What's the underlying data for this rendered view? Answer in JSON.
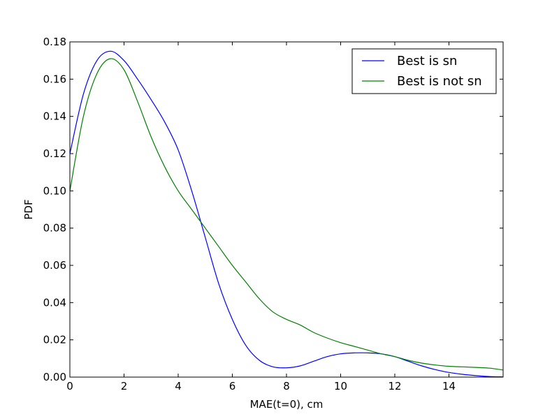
{
  "chart_data": {
    "type": "line",
    "xlabel": "MAE(t=0), cm",
    "ylabel": "PDF",
    "xlim": [
      0,
      16
    ],
    "ylim": [
      0,
      0.18
    ],
    "x_ticks": [
      0,
      2,
      4,
      6,
      8,
      10,
      12,
      14
    ],
    "x_tick_labels": [
      "0",
      "2",
      "4",
      "6",
      "8",
      "10",
      "12",
      "14"
    ],
    "y_ticks": [
      0.0,
      0.02,
      0.04,
      0.06,
      0.08,
      0.1,
      0.12,
      0.14,
      0.16,
      0.18
    ],
    "y_tick_labels": [
      "0.00",
      "0.02",
      "0.04",
      "0.06",
      "0.08",
      "0.10",
      "0.12",
      "0.14",
      "0.16",
      "0.18"
    ],
    "grid": false,
    "legend_position": "top-right",
    "series": [
      {
        "name": "Best is sn",
        "color": "#0000ff",
        "x": [
          0,
          0.5,
          1,
          1.5,
          2,
          2.5,
          3,
          3.5,
          4,
          4.5,
          5,
          5.5,
          6,
          6.5,
          7,
          7.5,
          8,
          8.5,
          9,
          9.5,
          10,
          10.5,
          11,
          11.5,
          12,
          12.5,
          13,
          13.5,
          14,
          14.5,
          15,
          15.5,
          16
        ],
        "y": [
          0.12,
          0.152,
          0.17,
          0.175,
          0.17,
          0.16,
          0.149,
          0.137,
          0.122,
          0.1,
          0.075,
          0.05,
          0.031,
          0.017,
          0.009,
          0.0055,
          0.005,
          0.006,
          0.0085,
          0.011,
          0.0125,
          0.013,
          0.013,
          0.0125,
          0.011,
          0.0085,
          0.006,
          0.004,
          0.0025,
          0.0015,
          0.0008,
          0.0003,
          0.0001
        ]
      },
      {
        "name": "Best is not sn",
        "color": "#008000",
        "x": [
          0,
          0.5,
          1,
          1.5,
          2,
          2.5,
          3,
          3.5,
          4,
          4.5,
          5,
          5.5,
          6,
          6.5,
          7,
          7.5,
          8,
          8.5,
          9,
          9.5,
          10,
          10.5,
          11,
          11.5,
          12,
          12.5,
          13,
          13.5,
          14,
          14.5,
          15,
          15.5,
          16
        ],
        "y": [
          0.1,
          0.14,
          0.163,
          0.171,
          0.165,
          0.148,
          0.129,
          0.113,
          0.1,
          0.09,
          0.08,
          0.07,
          0.06,
          0.051,
          0.042,
          0.035,
          0.031,
          0.028,
          0.024,
          0.021,
          0.0185,
          0.0165,
          0.0145,
          0.0125,
          0.011,
          0.009,
          0.0075,
          0.0065,
          0.0058,
          0.0055,
          0.0052,
          0.0048,
          0.0038
        ]
      }
    ]
  }
}
